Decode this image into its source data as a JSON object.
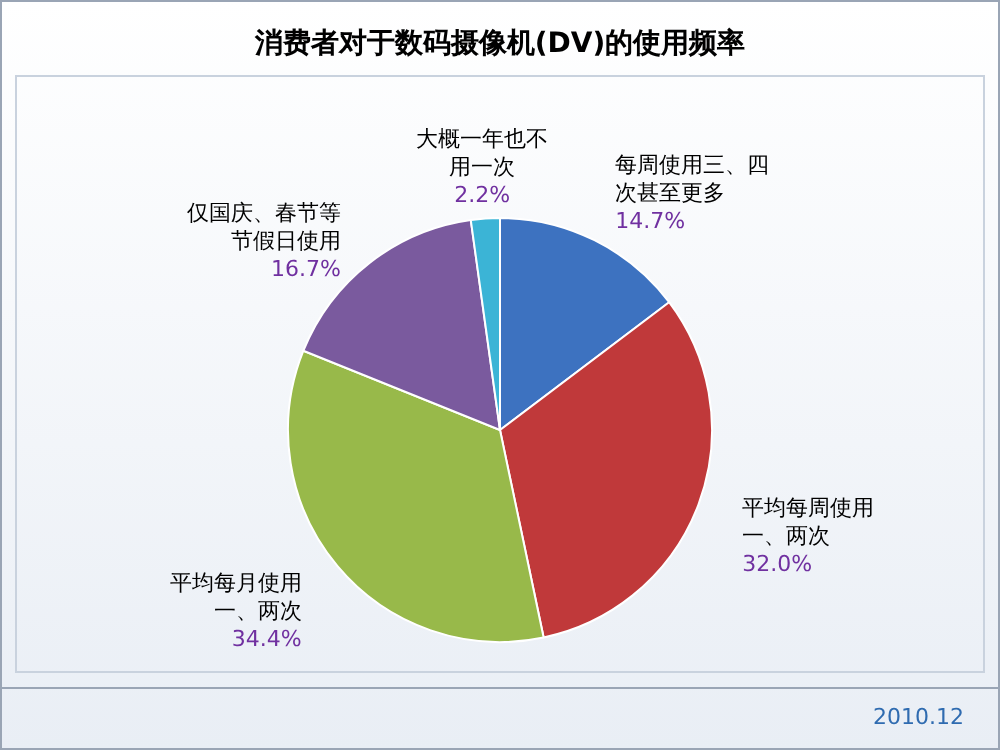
{
  "chart_data": {
    "type": "pie",
    "title": "消费者对于数码摄像机(DV)的使用频率",
    "categories": [
      "每周使用三、四次甚至更多",
      "平均每周使用一、两次",
      "平均每月使用一、两次",
      "仅国庆、春节等节假日使用",
      "大概一年也不用一次"
    ],
    "values": [
      14.7,
      32.0,
      34.4,
      16.7,
      2.2
    ],
    "value_labels": [
      "14.7%",
      "32.0%",
      "34.4%",
      "16.7%",
      "2.2%"
    ],
    "colors": [
      "#3d72c0",
      "#c0393a",
      "#98b94a",
      "#7a5a9e",
      "#3bb4d6"
    ],
    "annotations": [
      "2010.12"
    ]
  }
}
